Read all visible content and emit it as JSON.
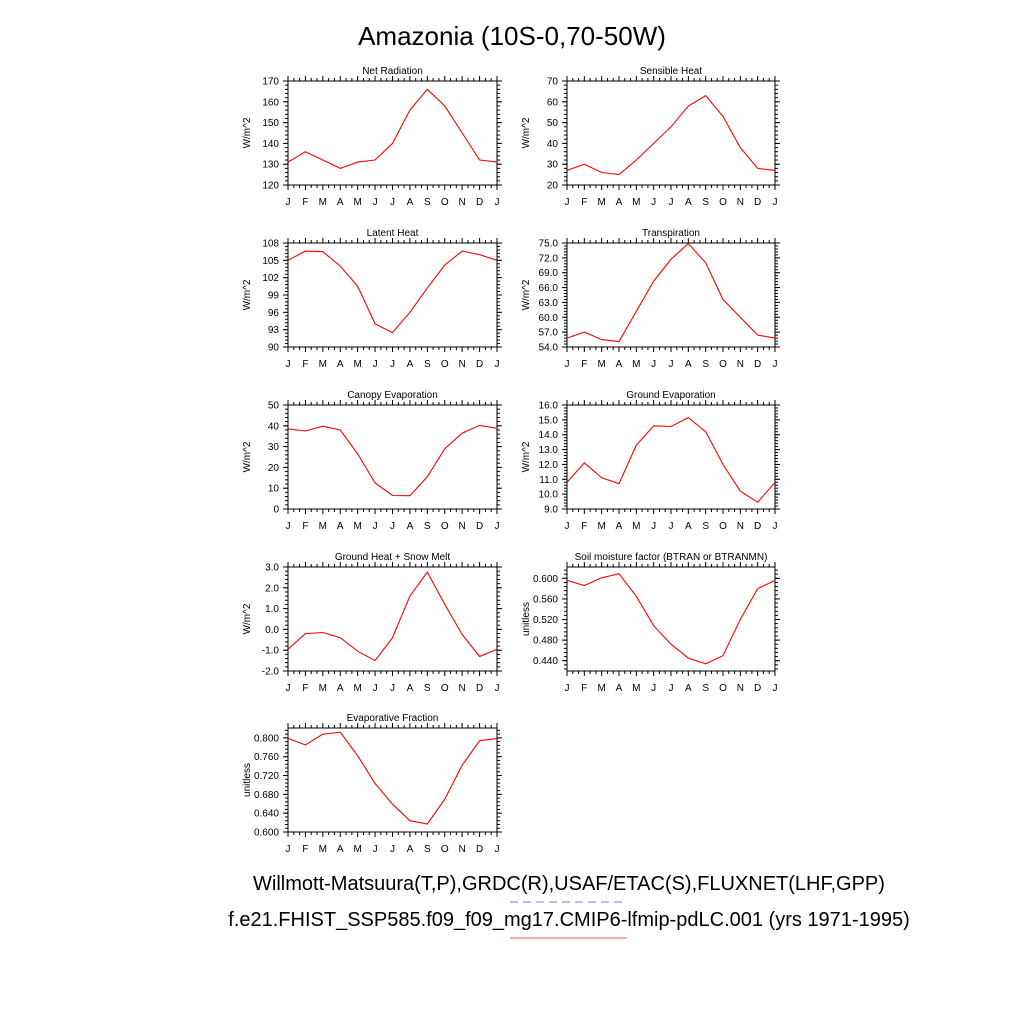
{
  "page": {
    "title": "Amazonia (10S-0,70-50W)",
    "footer_line1": "Willmott-Matsuura(T,P),GRDC(R),USAF/ETAC(S),FLUXNET(LHF,GPP)",
    "footer_line2": "f.e21.FHIST_SSP585.f09_f09_mg17.CMIP6-lfmip-pdLC.001 (yrs 1971-1995)",
    "legend_colors": {
      "obs": "#7777ee",
      "model": "#ee5555"
    }
  },
  "chart_data": [
    {
      "type": "line",
      "title": "Net Radiation",
      "ylabel": "W/m^2",
      "xlabel": "",
      "ylim": [
        120,
        170
      ],
      "yticks": [
        "120",
        "130",
        "140",
        "150",
        "160",
        "170"
      ],
      "yticks_values": [
        120,
        130,
        140,
        150,
        160,
        170
      ],
      "categories": [
        "J",
        "F",
        "M",
        "A",
        "M",
        "J",
        "J",
        "A",
        "S",
        "O",
        "N",
        "D",
        "J"
      ],
      "series": [
        {
          "name": "model",
          "color": "#ff0000",
          "values": [
            131,
            136,
            132,
            128,
            131,
            132,
            140,
            156,
            166,
            158,
            145,
            132,
            131
          ]
        }
      ]
    },
    {
      "type": "line",
      "title": "Sensible Heat",
      "ylabel": "W/m^2",
      "xlabel": "",
      "ylim": [
        20,
        70
      ],
      "yticks": [
        "20",
        "30",
        "40",
        "50",
        "60",
        "70"
      ],
      "yticks_values": [
        20,
        30,
        40,
        50,
        60,
        70
      ],
      "categories": [
        "J",
        "F",
        "M",
        "A",
        "M",
        "J",
        "J",
        "A",
        "S",
        "O",
        "N",
        "D",
        "J"
      ],
      "series": [
        {
          "name": "model",
          "color": "#ff0000",
          "values": [
            27,
            30,
            26,
            25,
            32,
            40,
            48,
            58,
            63,
            53,
            38,
            28,
            27
          ]
        }
      ]
    },
    {
      "type": "line",
      "title": "Latent Heat",
      "ylabel": "W/m^2",
      "xlabel": "",
      "ylim": [
        90,
        108
      ],
      "yticks": [
        "90",
        "93",
        "96",
        "99",
        "102",
        "105",
        "108"
      ],
      "yticks_values": [
        90,
        93,
        96,
        99,
        102,
        105,
        108
      ],
      "categories": [
        "J",
        "F",
        "M",
        "A",
        "M",
        "J",
        "J",
        "A",
        "S",
        "O",
        "N",
        "D",
        "J"
      ],
      "series": [
        {
          "name": "model",
          "color": "#ff0000",
          "values": [
            105,
            106.6,
            106.5,
            104,
            100.5,
            94,
            92.5,
            96,
            100.2,
            104.2,
            106.6,
            106,
            105
          ]
        }
      ]
    },
    {
      "type": "line",
      "title": "Transpiration",
      "ylabel": "W/m^2",
      "xlabel": "",
      "ylim": [
        54,
        75
      ],
      "yticks": [
        "54.0",
        "57.0",
        "60.0",
        "63.0",
        "66.0",
        "69.0",
        "72.0",
        "75.0"
      ],
      "yticks_values": [
        54,
        57,
        60,
        63,
        66,
        69,
        72,
        75
      ],
      "categories": [
        "J",
        "F",
        "M",
        "A",
        "M",
        "J",
        "J",
        "A",
        "S",
        "O",
        "N",
        "D",
        "J"
      ],
      "series": [
        {
          "name": "model",
          "color": "#ff0000",
          "values": [
            55.8,
            57,
            55.5,
            55.1,
            61.2,
            67.3,
            71.7,
            74.9,
            71,
            63.6,
            60,
            56.4,
            55.8
          ]
        }
      ]
    },
    {
      "type": "line",
      "title": "Canopy Evaporation",
      "ylabel": "W/m^2",
      "xlabel": "",
      "ylim": [
        0,
        50
      ],
      "yticks": [
        "0",
        "10",
        "20",
        "30",
        "40",
        "50"
      ],
      "yticks_values": [
        0,
        10,
        20,
        30,
        40,
        50
      ],
      "categories": [
        "J",
        "F",
        "M",
        "A",
        "M",
        "J",
        "J",
        "A",
        "S",
        "O",
        "N",
        "D",
        "J"
      ],
      "series": [
        {
          "name": "model",
          "color": "#ff0000",
          "values": [
            38.5,
            37.5,
            39.8,
            38,
            26.5,
            12.5,
            6.5,
            6.4,
            15.5,
            29,
            36.5,
            40.2,
            38.8
          ]
        }
      ]
    },
    {
      "type": "line",
      "title": "Ground Evaporation",
      "ylabel": "W/m^2",
      "xlabel": "",
      "ylim": [
        9,
        16
      ],
      "yticks": [
        "9.0",
        "10.0",
        "11.0",
        "12.0",
        "13.0",
        "14.0",
        "15.0",
        "16.0"
      ],
      "yticks_values": [
        9,
        10,
        11,
        12,
        13,
        14,
        15,
        16
      ],
      "categories": [
        "J",
        "F",
        "M",
        "A",
        "M",
        "J",
        "J",
        "A",
        "S",
        "O",
        "N",
        "D",
        "J"
      ],
      "series": [
        {
          "name": "model",
          "color": "#ff0000",
          "values": [
            10.8,
            12.1,
            11.1,
            10.7,
            13.3,
            14.6,
            14.55,
            15.15,
            14.2,
            12,
            10.2,
            9.45,
            10.8
          ]
        }
      ]
    },
    {
      "type": "line",
      "title": "Ground Heat + Snow Melt",
      "ylabel": "W/m^2",
      "xlabel": "",
      "ylim": [
        -2,
        3
      ],
      "yticks": [
        "-2.0",
        "-1.0",
        "0.0",
        "1.0",
        "2.0",
        "3.0"
      ],
      "yticks_values": [
        -2,
        -1,
        0,
        1,
        2,
        3
      ],
      "categories": [
        "J",
        "F",
        "M",
        "A",
        "M",
        "J",
        "J",
        "A",
        "S",
        "O",
        "N",
        "D",
        "J"
      ],
      "series": [
        {
          "name": "model",
          "color": "#ff0000",
          "values": [
            -0.95,
            -0.2,
            -0.15,
            -0.4,
            -1.05,
            -1.5,
            -0.4,
            1.6,
            2.75,
            1.2,
            -0.25,
            -1.3,
            -0.95
          ]
        }
      ]
    },
    {
      "type": "line",
      "title": "Soil moisture factor (BTRAN or BTRANMN)",
      "ylabel": "unitless",
      "xlabel": "",
      "ylim": [
        0.42,
        0.622
      ],
      "yticks": [
        "0.440",
        "0.480",
        "0.520",
        "0.560",
        "0.600"
      ],
      "yticks_values": [
        0.44,
        0.48,
        0.52,
        0.56,
        0.6
      ],
      "categories": [
        "J",
        "F",
        "M",
        "A",
        "M",
        "J",
        "J",
        "A",
        "S",
        "O",
        "N",
        "D",
        "J"
      ],
      "series": [
        {
          "name": "model",
          "color": "#ff0000",
          "values": [
            0.596,
            0.586,
            0.601,
            0.609,
            0.565,
            0.508,
            0.472,
            0.445,
            0.434,
            0.45,
            0.52,
            0.58,
            0.596
          ]
        }
      ]
    },
    {
      "type": "line",
      "title": "Evaporative Fraction",
      "ylabel": "unitless",
      "xlabel": "",
      "ylim": [
        0.6,
        0.821
      ],
      "yticks": [
        "0.600",
        "0.640",
        "0.680",
        "0.720",
        "0.760",
        "0.800"
      ],
      "yticks_values": [
        0.6,
        0.64,
        0.68,
        0.72,
        0.76,
        0.8
      ],
      "categories": [
        "J",
        "F",
        "M",
        "A",
        "M",
        "J",
        "J",
        "A",
        "S",
        "O",
        "N",
        "D",
        "J"
      ],
      "series": [
        {
          "name": "model",
          "color": "#ff0000",
          "values": [
            0.799,
            0.785,
            0.808,
            0.812,
            0.762,
            0.703,
            0.659,
            0.624,
            0.617,
            0.67,
            0.742,
            0.794,
            0.799
          ]
        }
      ]
    }
  ]
}
